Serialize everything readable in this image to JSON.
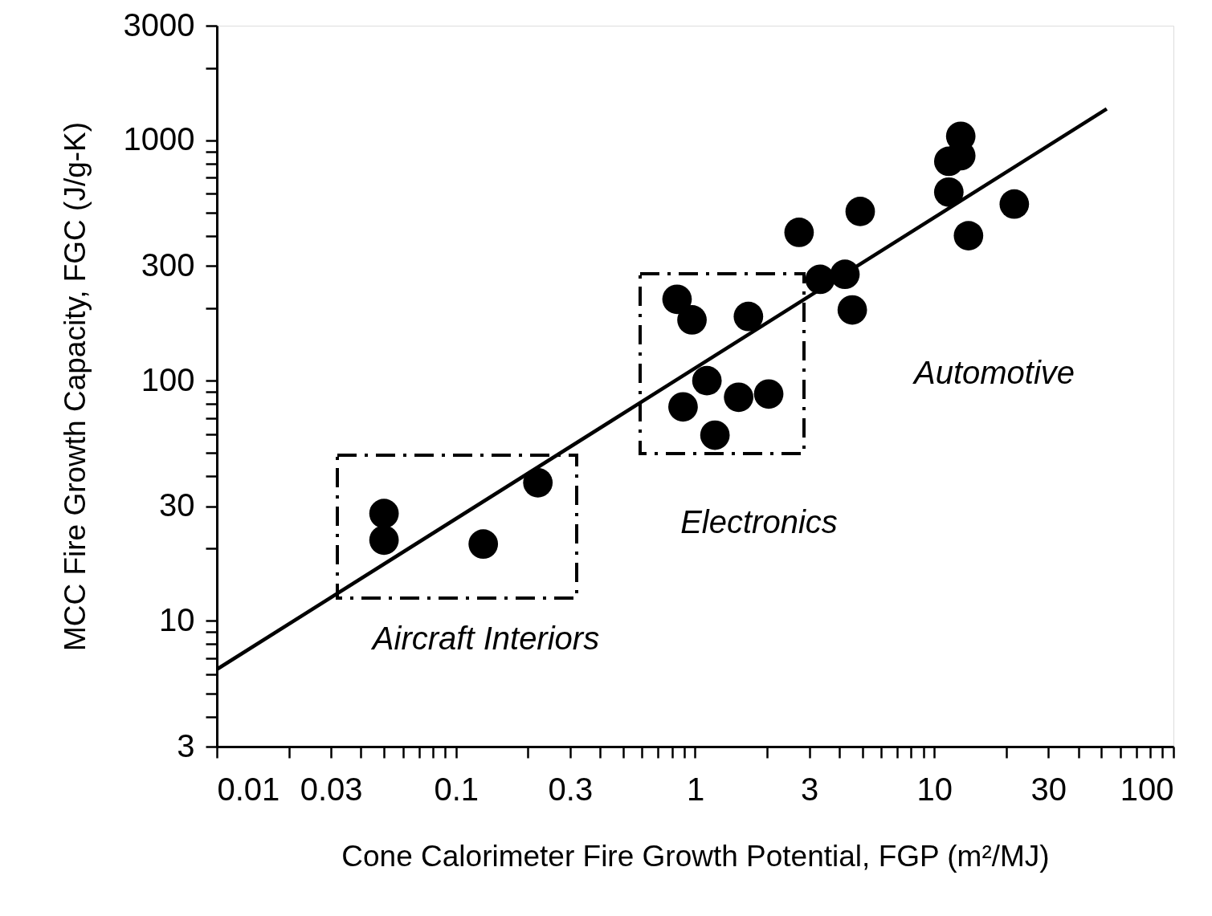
{
  "chart_data": {
    "type": "scatter",
    "xlabel": "Cone Calorimeter Fire Growth Potential, FGP (m²/MJ)",
    "ylabel": "MCC Fire Growth Capacity, FGC (J/g-K)",
    "log": "xy",
    "grid": false,
    "xlim": [
      0.01,
      100
    ],
    "ylim": [
      3,
      3000
    ],
    "xticks": [
      0.01,
      {
        "value": 0.02,
        "label": null
      },
      0.03,
      {
        "value": 0.04,
        "label": null
      },
      {
        "value": 0.05,
        "label": null
      },
      {
        "value": 0.06,
        "label": null
      },
      {
        "value": 0.07,
        "label": null
      },
      {
        "value": 0.08,
        "label": null
      },
      {
        "value": 0.09,
        "label": null
      },
      0.1,
      {
        "value": 0.2,
        "label": null
      },
      0.3,
      {
        "value": 0.4,
        "label": null
      },
      {
        "value": 0.5,
        "label": null
      },
      {
        "value": 0.6,
        "label": null
      },
      {
        "value": 0.7,
        "label": null
      },
      {
        "value": 0.8,
        "label": null
      },
      {
        "value": 0.9,
        "label": null
      },
      1,
      {
        "value": 2,
        "label": null
      },
      3,
      {
        "value": 4,
        "label": null
      },
      {
        "value": 5,
        "label": null
      },
      {
        "value": 6,
        "label": null
      },
      {
        "value": 7,
        "label": null
      },
      {
        "value": 8,
        "label": null
      },
      {
        "value": 9,
        "label": null
      },
      10,
      {
        "value": 20,
        "label": null
      },
      30,
      {
        "value": 40,
        "label": null
      },
      {
        "value": 50,
        "label": null
      },
      {
        "value": 60,
        "label": null
      },
      {
        "value": 70,
        "label": null
      },
      {
        "value": 80,
        "label": null
      },
      {
        "value": 90,
        "label": null
      },
      100
    ],
    "yticks": [
      3,
      {
        "value": 4,
        "label": null
      },
      {
        "value": 5,
        "label": null
      },
      {
        "value": 6,
        "label": null
      },
      {
        "value": 7,
        "label": null
      },
      {
        "value": 8,
        "label": null
      },
      {
        "value": 9,
        "label": null
      },
      10,
      {
        "value": 20,
        "label": null
      },
      30,
      {
        "value": 40,
        "label": null
      },
      {
        "value": 50,
        "label": null
      },
      {
        "value": 60,
        "label": null
      },
      {
        "value": 70,
        "label": null
      },
      {
        "value": 80,
        "label": null
      },
      {
        "value": 90,
        "label": null
      },
      100,
      {
        "value": 200,
        "label": null
      },
      300,
      {
        "value": 400,
        "label": null
      },
      {
        "value": 500,
        "label": null
      },
      {
        "value": 600,
        "label": null
      },
      {
        "value": 700,
        "label": null
      },
      {
        "value": 800,
        "label": null
      },
      {
        "value": 900,
        "label": null
      },
      1000,
      {
        "value": 2000,
        "label": null
      },
      3000
    ],
    "series": [
      {
        "marker": "circle",
        "color": "#000000",
        "x": [
          0.05,
          0.05,
          0.13,
          0.22,
          0.84,
          0.97,
          1.12,
          0.89,
          1.21,
          1.52,
          1.67,
          2.03,
          2.72,
          3.33,
          4.23,
          4.54,
          4.9,
          11.5,
          11.5,
          12.9,
          12.9,
          13.9,
          21.6
        ],
        "values": [
          28,
          21.7,
          20.9,
          37.6,
          218,
          179,
          100,
          77.8,
          59.3,
          85.3,
          185,
          88,
          414,
          264,
          277,
          197,
          506,
          609,
          818,
          1039,
          863,
          401,
          543
        ]
      },
      {
        "type": "line",
        "line_style": "solid",
        "color": "#000000",
        "x": [
          0.01,
          52.6
        ],
        "values": [
          6.29,
          1352
        ]
      }
    ],
    "annotations": [
      "Aircraft Interiors",
      "Electronics",
      "Automotive"
    ]
  }
}
